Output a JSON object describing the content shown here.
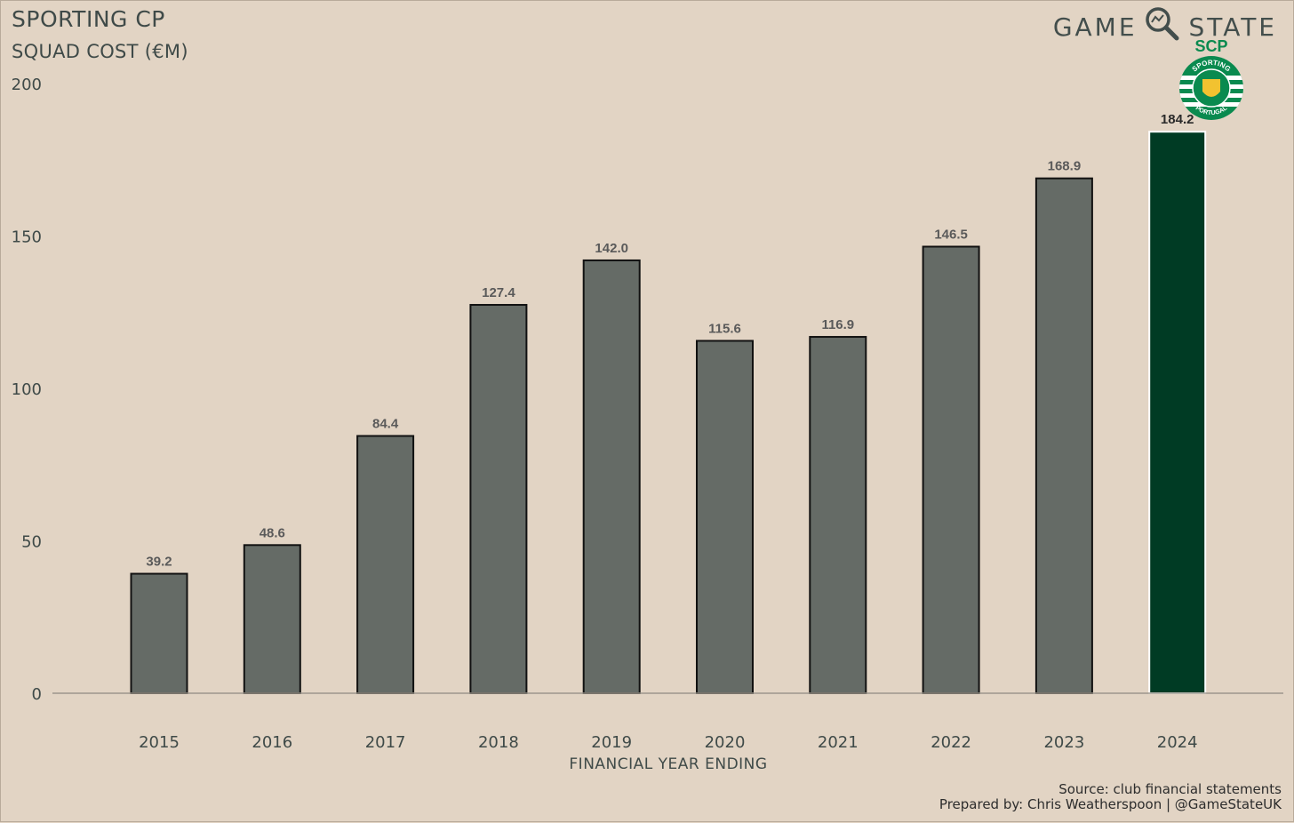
{
  "header": {
    "title": "SPORTING CP",
    "subtitle": "SQUAD COST (€M)",
    "brand_left": "GAME",
    "brand_right": "STATE",
    "crest_text": "SCP",
    "crest_ring_top": "SPORTING",
    "crest_ring_bottom": "PORTUGAL"
  },
  "footer": {
    "source": "Source: club financial statements",
    "prepared": "Prepared by: Chris Weatherspoon | @GameStateUK"
  },
  "colors": {
    "background": "#e2d4c4",
    "bar": "#656b66",
    "highlight_bar": "#003b24",
    "text": "#3f4a48"
  },
  "chart_data": {
    "type": "bar",
    "title": "SPORTING CP",
    "subtitle": "SQUAD COST (€M)",
    "xlabel": "FINANCIAL YEAR ENDING",
    "ylabel": "",
    "categories": [
      "2015",
      "2016",
      "2017",
      "2018",
      "2019",
      "2020",
      "2021",
      "2022",
      "2023",
      "2024"
    ],
    "values": [
      39.2,
      48.6,
      84.4,
      127.4,
      142.0,
      115.6,
      116.9,
      146.5,
      168.9,
      184.2
    ],
    "value_labels": [
      "39.2",
      "48.6",
      "84.4",
      "127.4",
      "142.0",
      "115.6",
      "116.9",
      "146.5",
      "168.9",
      "184.2"
    ],
    "highlight_category": "2024",
    "ylim": [
      0,
      200
    ],
    "yticks": [
      "0",
      "50",
      "100",
      "150",
      "200"
    ],
    "grid": false,
    "legend": "none"
  }
}
